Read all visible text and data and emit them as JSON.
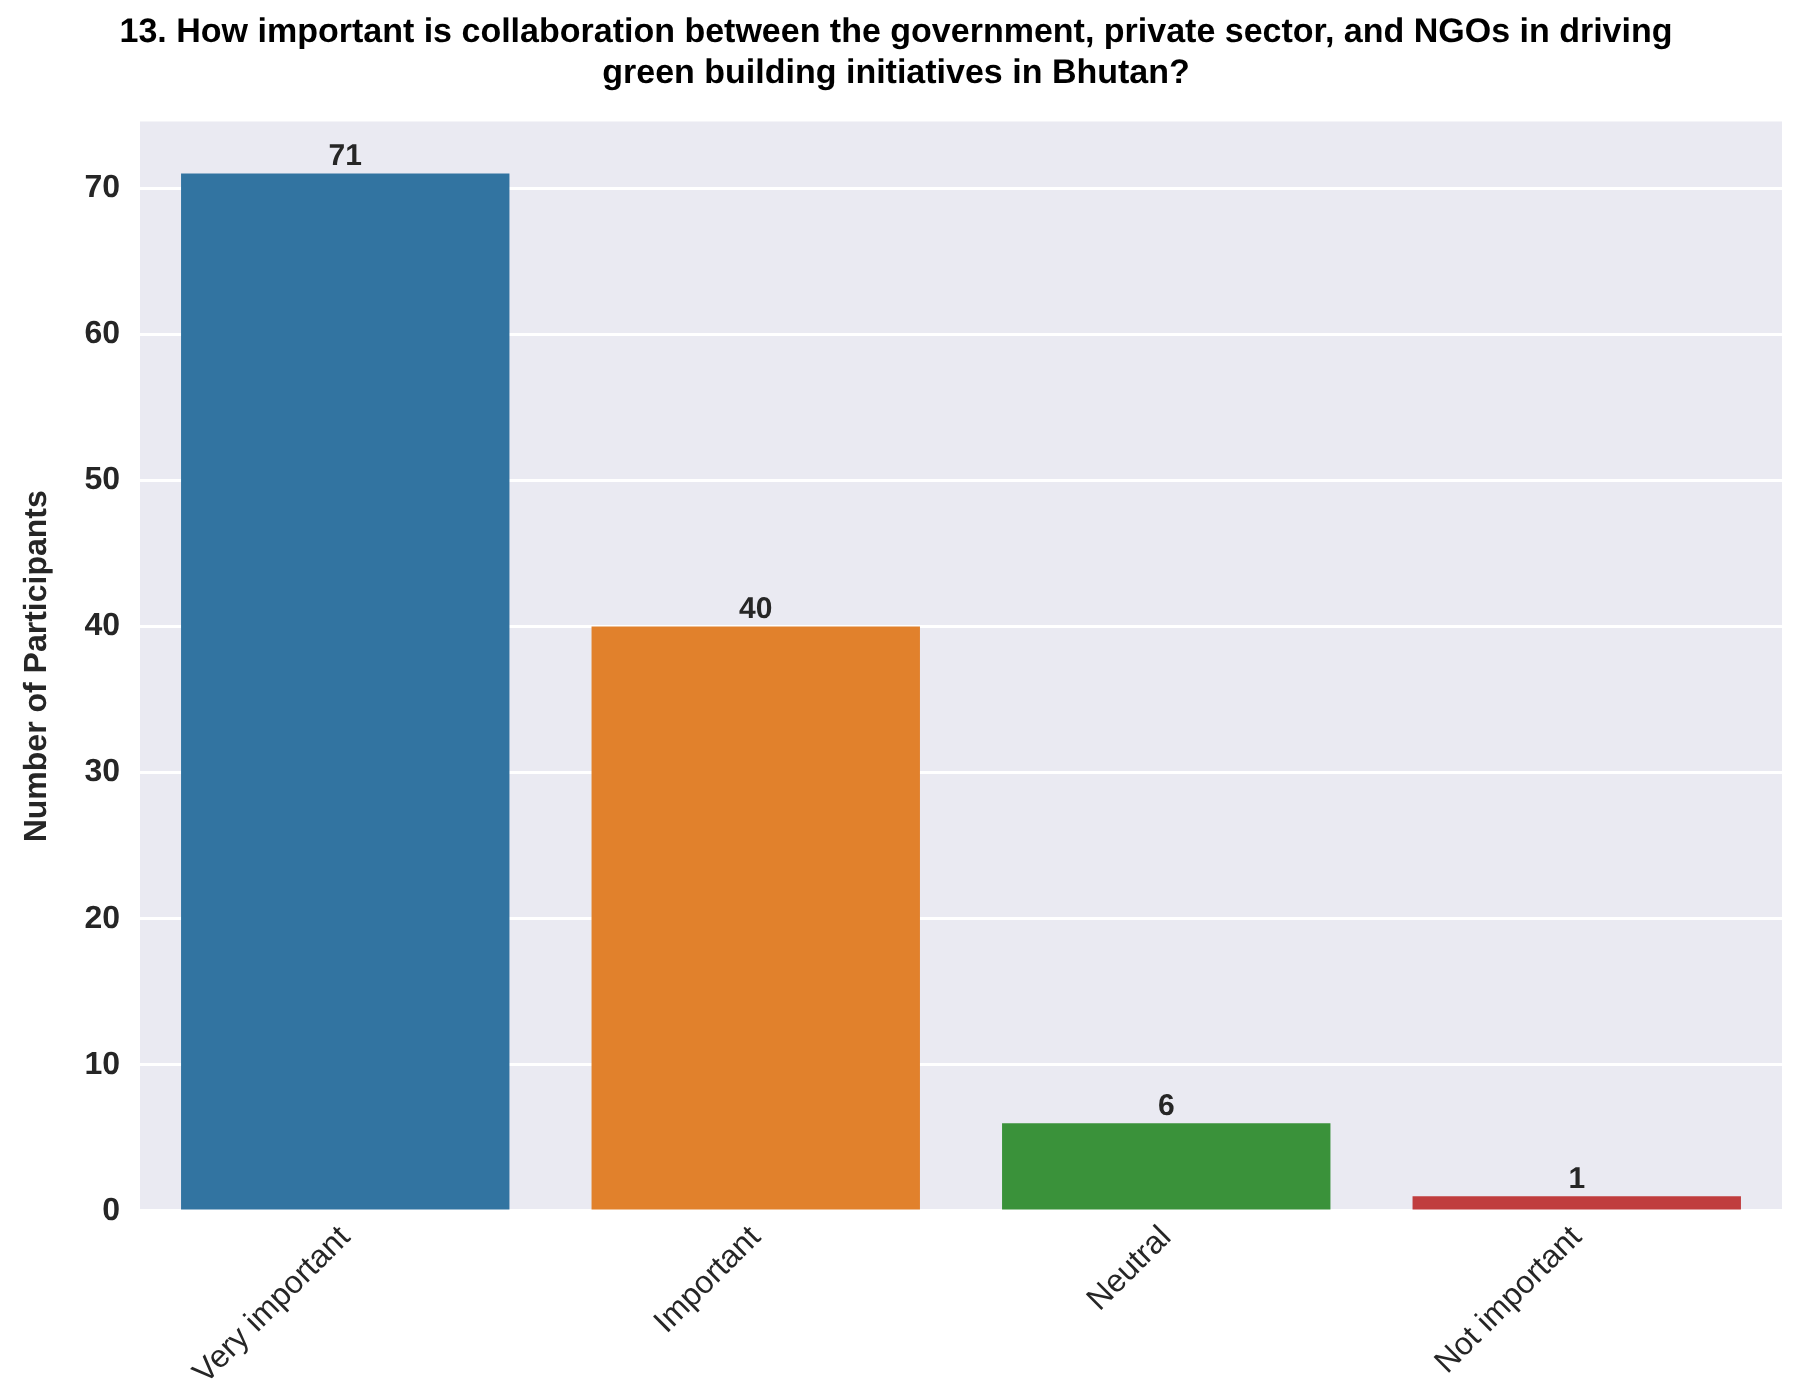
{
  "chart_data": {
    "type": "bar",
    "title": "13. How important is collaboration between the government, private sector, and NGOs in driving green building initiatives in Bhutan?",
    "ylabel": "Number of Participants",
    "categories": [
      "Very important",
      "Important",
      "Neutral",
      "Not important"
    ],
    "values": [
      71,
      40,
      6,
      1
    ],
    "colors": [
      "#3274a1",
      "#e1812c",
      "#3a923a",
      "#c03d3e"
    ],
    "ylim": [
      0,
      74.55
    ],
    "yticks": [
      0,
      10,
      20,
      30,
      40,
      50,
      60,
      70
    ],
    "grid": "y",
    "data_labels": true
  }
}
